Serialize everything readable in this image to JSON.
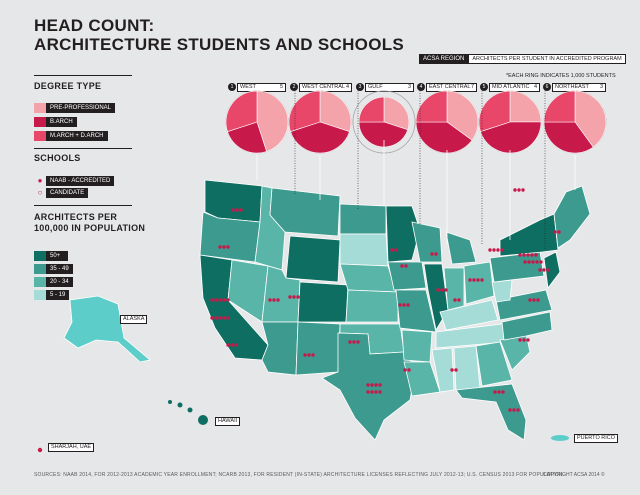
{
  "title_line1": "HEAD COUNT:",
  "title_line2": "ARCHITECTURE STUDENTS AND SCHOOLS",
  "acsa_region_label": "ACSA REGION",
  "architects_per_student_label": "ARCHITECTS PER STUDENT IN ACCREDITED PROGRAM",
  "ring_note": "*EACH RING INDICATES 1,000 STUDENTS",
  "degree_type": {
    "heading": "DEGREE TYPE",
    "items": [
      {
        "label": "PRE-PROFESSIONAL",
        "color": "#f4a3ab"
      },
      {
        "label": "B.ARCH",
        "color": "#c8194b"
      },
      {
        "label": "M.ARCH + D.ARCH",
        "color": "#e8476a"
      }
    ]
  },
  "schools": {
    "heading": "SCHOOLS",
    "items": [
      {
        "label": "NAAB - ACCREDITED",
        "marker": "filled-dot"
      },
      {
        "label": "CANDIDATE",
        "marker": "hollow-dot"
      }
    ]
  },
  "architects": {
    "heading_line1": "ARCHITECTS PER",
    "heading_line2": "100,000 IN POPULATION",
    "items": [
      {
        "label": "50+",
        "color": "#0f6e62"
      },
      {
        "label": "35 - 49",
        "color": "#3c9a8e"
      },
      {
        "label": "20 - 34",
        "color": "#5ab5a9"
      },
      {
        "label": "5 - 19",
        "color": "#a6dcd7"
      }
    ]
  },
  "places": {
    "alaska": "ALASKA",
    "hawaii": "HAWAII",
    "sharjah": "SHARJAH, UAE",
    "puerto_rico": "PUERTO RICO"
  },
  "footer": "SOURCES: NAAB 2014, FOR 2012-2013 ACADEMIC YEAR ENROLLMENT; NCARB 2013, FOR RESIDENT (IN-STATE) ARCHITECTURE LICENSES REFLECTING JULY 2012-13; U.S. CENSUS 2013 FOR POPULATION.",
  "copyright": "COPYRIGHT ACSA 2014 ©",
  "chart_data": {
    "type": "pie",
    "regions": [
      {
        "num": "1",
        "name": "WEST",
        "architects_per_student": "5",
        "rings": 3,
        "slices": [
          {
            "degree": "PRE-PROFESSIONAL",
            "share": 0.45
          },
          {
            "degree": "B.ARCH",
            "share": 0.25
          },
          {
            "degree": "M.ARCH + D.ARCH",
            "share": 0.3
          }
        ]
      },
      {
        "num": "2",
        "name": "WEST CENTRAL",
        "architects_per_student": "4",
        "rings": 3,
        "slices": [
          {
            "degree": "PRE-PROFESSIONAL",
            "share": 0.3
          },
          {
            "degree": "B.ARCH",
            "share": 0.4
          },
          {
            "degree": "M.ARCH + D.ARCH",
            "share": 0.3
          }
        ]
      },
      {
        "num": "3",
        "name": "GULF",
        "architects_per_student": "3",
        "rings": 2,
        "slices": [
          {
            "degree": "PRE-PROFESSIONAL",
            "share": 0.3
          },
          {
            "degree": "B.ARCH",
            "share": 0.45
          },
          {
            "degree": "M.ARCH + D.ARCH",
            "share": 0.25
          }
        ]
      },
      {
        "num": "4",
        "name": "EAST CENTRAL",
        "architects_per_student": "7",
        "rings": 3,
        "slices": [
          {
            "degree": "PRE-PROFESSIONAL",
            "share": 0.35
          },
          {
            "degree": "B.ARCH",
            "share": 0.4
          },
          {
            "degree": "M.ARCH + D.ARCH",
            "share": 0.25
          }
        ]
      },
      {
        "num": "5",
        "name": "MID ATLANTIC",
        "architects_per_student": "4",
        "rings": 3,
        "slices": [
          {
            "degree": "PRE-PROFESSIONAL",
            "share": 0.25
          },
          {
            "degree": "B.ARCH",
            "share": 0.45
          },
          {
            "degree": "M.ARCH + D.ARCH",
            "share": 0.3
          }
        ]
      },
      {
        "num": "6",
        "name": "NORTHEAST",
        "architects_per_student": "3",
        "rings": 4,
        "slices": [
          {
            "degree": "PRE-PROFESSIONAL",
            "share": 0.4
          },
          {
            "degree": "B.ARCH",
            "share": 0.35
          },
          {
            "degree": "M.ARCH + D.ARCH",
            "share": 0.25
          }
        ]
      }
    ]
  }
}
